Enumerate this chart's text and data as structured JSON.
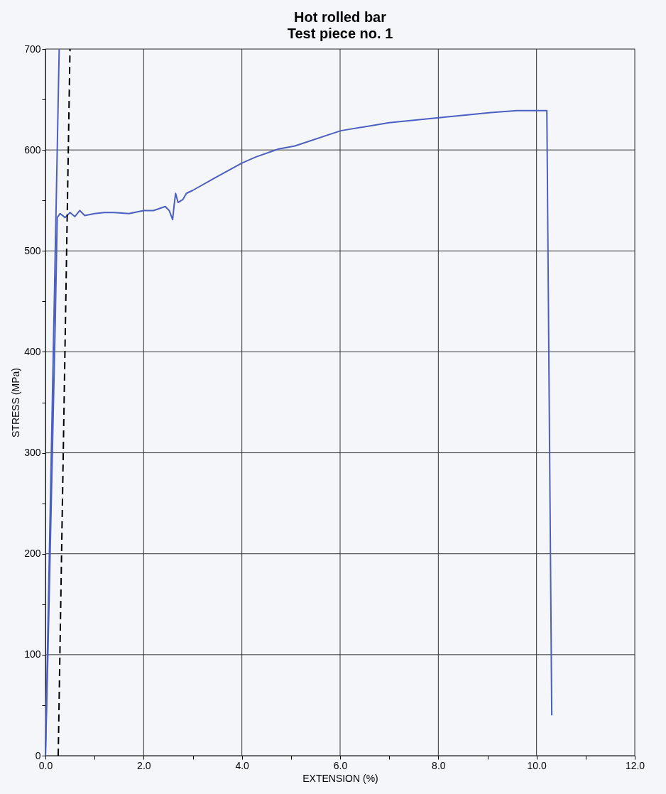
{
  "chart_data": {
    "type": "line",
    "title": "Hot rolled bar",
    "subtitle": "Test piece no. 1",
    "xlabel": "EXTENSION (%)",
    "ylabel": "STRESS (MPa)",
    "xlim": [
      0,
      12
    ],
    "ylim": [
      0,
      700
    ],
    "xticks": [
      {
        "value": 0,
        "label": "0.0"
      },
      {
        "value": 1,
        "label": null
      },
      {
        "value": 2,
        "label": "2.0"
      },
      {
        "value": 3,
        "label": null
      },
      {
        "value": 4,
        "label": "4.0"
      },
      {
        "value": 5,
        "label": null
      },
      {
        "value": 6,
        "label": "6.0"
      },
      {
        "value": 7,
        "label": null
      },
      {
        "value": 8,
        "label": "8.0"
      },
      {
        "value": 9,
        "label": null
      },
      {
        "value": 10,
        "label": "10.0"
      },
      {
        "value": 11,
        "label": null
      },
      {
        "value": 12,
        "label": "12.0"
      }
    ],
    "yticks": [
      0,
      {
        "value": 50,
        "label": null
      },
      100,
      {
        "value": 150,
        "label": null
      },
      200,
      {
        "value": 250,
        "label": null
      },
      300,
      {
        "value": 350,
        "label": null
      },
      400,
      {
        "value": 450,
        "label": null
      },
      500,
      {
        "value": 550,
        "label": null
      },
      600,
      {
        "value": 650,
        "label": null
      },
      700
    ],
    "grid": true,
    "marker": "none",
    "line_style": "solid",
    "series": [
      {
        "color": "#4a5fc1",
        "x": [
          0,
          0.05,
          0.1,
          0.15,
          0.2,
          0.24,
          0.3,
          0.4,
          0.5,
          0.6,
          0.7,
          0.8,
          1.0,
          1.2,
          1.4,
          1.7,
          2.0,
          2.2,
          2.44,
          2.52,
          2.59,
          2.62,
          2.65,
          2.7,
          2.8,
          2.87,
          3.0,
          3.44,
          4.0,
          4.28,
          4.75,
          5.08,
          6.01,
          7.0,
          8.01,
          9.07,
          9.6,
          10.1,
          10.21,
          10.31
        ],
        "values": [
          0,
          100,
          210,
          320,
          430,
          533,
          537,
          533,
          538,
          534,
          540,
          535,
          537,
          538,
          538,
          537,
          540,
          540,
          544,
          540,
          531,
          545,
          557,
          548,
          551,
          557,
          560,
          572,
          587,
          593,
          601,
          604,
          619,
          627,
          632,
          637,
          639,
          639,
          639,
          40
        ]
      },
      {
        "color": "#4a5fc1",
        "x": [
          0,
          0.28
        ],
        "values": [
          0,
          700
        ]
      },
      {
        "color": "#000000",
        "x": [
          0.26,
          0.5
        ],
        "values": [
          0,
          700
        ],
        "line_style": "dashed"
      }
    ]
  }
}
